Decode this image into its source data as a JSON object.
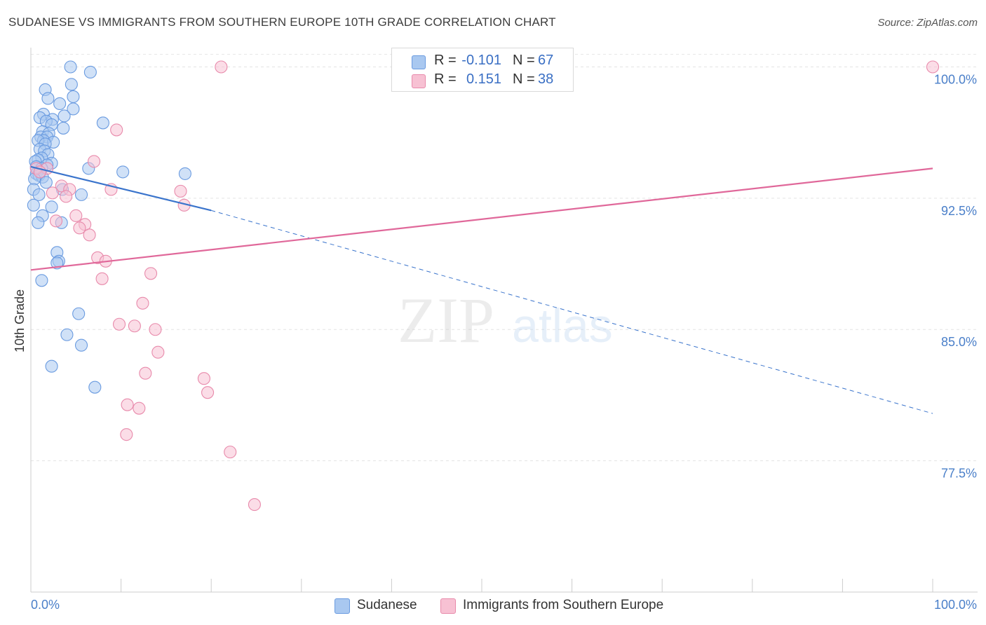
{
  "header": {
    "title": "SUDANESE VS IMMIGRANTS FROM SOUTHERN EUROPE 10TH GRADE CORRELATION CHART",
    "source": "Source: ZipAtlas.com"
  },
  "watermark": {
    "zip": "ZIP",
    "atlas": "atlas"
  },
  "legend": {
    "rows": [
      {
        "r_label": "R =",
        "r_value": "-0.101",
        "n_label": "N =",
        "n_value": "67",
        "color": "#a9c8f0",
        "border": "#6a9be0"
      },
      {
        "r_label": "R =",
        "r_value": "0.151",
        "n_label": "N =",
        "n_value": "38",
        "color": "#f7c1d3",
        "border": "#e88aab"
      }
    ]
  },
  "bottom_legend": {
    "items": [
      {
        "label": "Sudanese",
        "color": "#a9c8f0",
        "border": "#6a9be0"
      },
      {
        "label": "Immigrants from Southern Europe",
        "color": "#f7c1d3",
        "border": "#e88aab"
      }
    ]
  },
  "chart_data": {
    "type": "scatter",
    "title": "SUDANESE VS IMMIGRANTS FROM SOUTHERN EUROPE 10TH GRADE CORRELATION CHART",
    "xlabel": "",
    "ylabel": "10th Grade",
    "xlim": [
      0,
      100
    ],
    "ylim": [
      70.0,
      100.7
    ],
    "x_tick_labels": [
      "0.0%",
      "100.0%"
    ],
    "y_ticks": [
      {
        "value": 100.0,
        "label": "100.0%"
      },
      {
        "value": 92.5,
        "label": "92.5%"
      },
      {
        "value": 85.0,
        "label": "85.0%"
      },
      {
        "value": 77.5,
        "label": "77.5%"
      }
    ],
    "grid": true,
    "series": [
      {
        "name": "Sudanese",
        "color": "#a9c8f0",
        "stroke": "#6a9be0",
        "line_color": "#3a74cc",
        "trend": {
          "x0": 0.0,
          "y0": 94.3,
          "x1": 20.0,
          "y1": 91.8,
          "dash_to_x": 100.0,
          "dash_to_y": 80.2
        },
        "points": [
          [
            4.4,
            100.0
          ],
          [
            6.6,
            99.7
          ],
          [
            4.5,
            99.0
          ],
          [
            1.6,
            98.7
          ],
          [
            1.9,
            98.2
          ],
          [
            4.7,
            98.3
          ],
          [
            3.2,
            97.9
          ],
          [
            4.7,
            97.6
          ],
          [
            1.4,
            97.3
          ],
          [
            1.0,
            97.1
          ],
          [
            3.7,
            97.2
          ],
          [
            2.4,
            97.0
          ],
          [
            1.7,
            96.9
          ],
          [
            8.0,
            96.8
          ],
          [
            2.3,
            96.7
          ],
          [
            3.6,
            96.5
          ],
          [
            1.3,
            96.3
          ],
          [
            2.0,
            96.2
          ],
          [
            1.1,
            96.0
          ],
          [
            1.8,
            96.0
          ],
          [
            1.4,
            95.8
          ],
          [
            0.8,
            95.8
          ],
          [
            2.5,
            95.7
          ],
          [
            1.6,
            95.6
          ],
          [
            1.0,
            95.3
          ],
          [
            1.5,
            95.2
          ],
          [
            1.9,
            95.0
          ],
          [
            1.2,
            94.8
          ],
          [
            0.8,
            94.7
          ],
          [
            0.5,
            94.6
          ],
          [
            2.3,
            94.5
          ],
          [
            1.8,
            94.4
          ],
          [
            0.6,
            94.3
          ],
          [
            1.2,
            94.2
          ],
          [
            6.4,
            94.2
          ],
          [
            10.2,
            94.0
          ],
          [
            17.1,
            93.9
          ],
          [
            0.6,
            93.9
          ],
          [
            0.9,
            93.8
          ],
          [
            1.3,
            93.7
          ],
          [
            0.4,
            93.6
          ],
          [
            1.7,
            93.4
          ],
          [
            3.5,
            93.0
          ],
          [
            0.3,
            93.0
          ],
          [
            5.6,
            92.7
          ],
          [
            0.9,
            92.7
          ],
          [
            0.3,
            92.1
          ],
          [
            2.3,
            92.0
          ],
          [
            1.3,
            91.5
          ],
          [
            3.4,
            91.1
          ],
          [
            0.8,
            91.1
          ],
          [
            2.9,
            89.4
          ],
          [
            3.1,
            88.9
          ],
          [
            2.9,
            88.8
          ],
          [
            1.2,
            87.8
          ],
          [
            5.3,
            85.9
          ],
          [
            4.0,
            84.7
          ],
          [
            5.6,
            84.1
          ],
          [
            2.3,
            82.9
          ],
          [
            7.1,
            81.7
          ]
        ]
      },
      {
        "name": "Immigrants from Southern Europe",
        "color": "#f7c1d3",
        "stroke": "#e88aab",
        "line_color": "#e0689a",
        "trend": {
          "x0": 0.0,
          "y0": 88.4,
          "x1": 100.0,
          "y1": 94.2
        },
        "points": [
          [
            21.1,
            100.0
          ],
          [
            100.0,
            100.0
          ],
          [
            9.5,
            96.4
          ],
          [
            7.0,
            94.6
          ],
          [
            0.6,
            94.2
          ],
          [
            1.8,
            94.2
          ],
          [
            1.0,
            94.0
          ],
          [
            3.4,
            93.2
          ],
          [
            4.3,
            93.0
          ],
          [
            8.9,
            93.0
          ],
          [
            16.6,
            92.9
          ],
          [
            2.4,
            92.8
          ],
          [
            3.9,
            92.6
          ],
          [
            17.0,
            92.1
          ],
          [
            5.0,
            91.5
          ],
          [
            2.8,
            91.2
          ],
          [
            6.0,
            91.0
          ],
          [
            5.4,
            90.8
          ],
          [
            6.5,
            90.4
          ],
          [
            7.4,
            89.1
          ],
          [
            8.3,
            88.9
          ],
          [
            13.3,
            88.2
          ],
          [
            7.9,
            87.9
          ],
          [
            12.4,
            86.5
          ],
          [
            9.8,
            85.3
          ],
          [
            11.5,
            85.2
          ],
          [
            13.8,
            85.0
          ],
          [
            14.1,
            83.7
          ],
          [
            12.7,
            82.5
          ],
          [
            19.2,
            82.2
          ],
          [
            19.6,
            81.4
          ],
          [
            10.7,
            80.7
          ],
          [
            12.0,
            80.5
          ],
          [
            10.6,
            79.0
          ],
          [
            22.1,
            78.0
          ],
          [
            24.8,
            75.0
          ]
        ]
      }
    ]
  }
}
